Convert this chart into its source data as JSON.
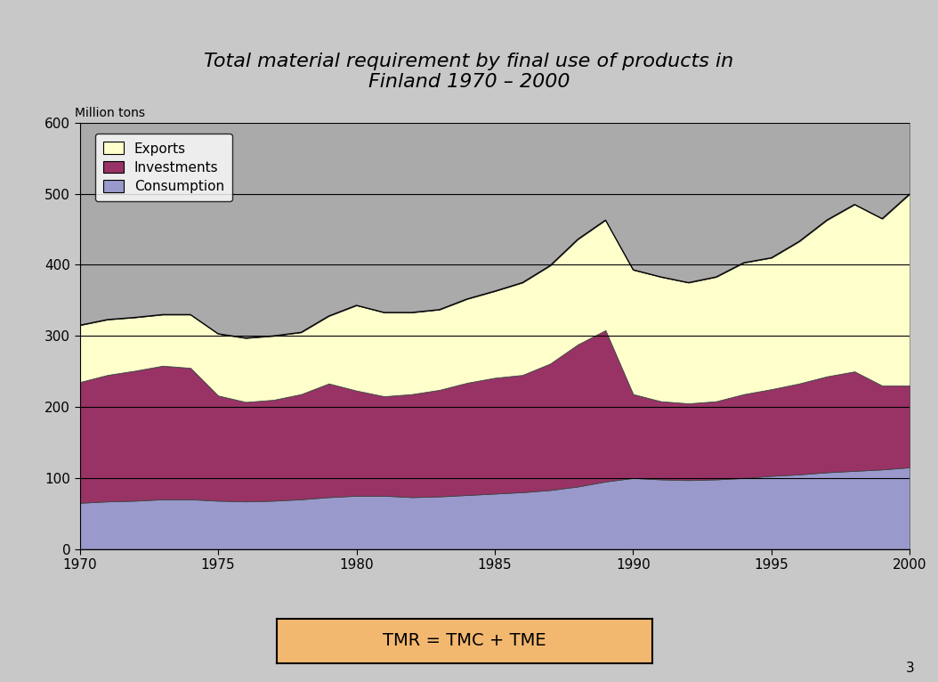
{
  "title": "Total material requirement by final use of products in\nFinland 1970 – 2000",
  "ylabel": "Million tons",
  "years": [
    1970,
    1971,
    1972,
    1973,
    1974,
    1975,
    1976,
    1977,
    1978,
    1979,
    1980,
    1981,
    1982,
    1983,
    1984,
    1985,
    1986,
    1987,
    1988,
    1989,
    1990,
    1991,
    1992,
    1993,
    1994,
    1995,
    1996,
    1997,
    1998,
    1999,
    2000
  ],
  "consumption": [
    65,
    67,
    68,
    70,
    70,
    68,
    67,
    68,
    70,
    73,
    75,
    75,
    73,
    74,
    76,
    78,
    80,
    83,
    88,
    95,
    100,
    98,
    97,
    98,
    100,
    103,
    105,
    108,
    110,
    112,
    115
  ],
  "investments": [
    170,
    178,
    183,
    188,
    185,
    148,
    140,
    142,
    148,
    160,
    148,
    140,
    145,
    150,
    158,
    163,
    165,
    178,
    200,
    213,
    118,
    110,
    108,
    110,
    118,
    122,
    128,
    135,
    140,
    118,
    115
  ],
  "exports": [
    80,
    78,
    75,
    72,
    75,
    87,
    90,
    90,
    87,
    95,
    120,
    118,
    115,
    113,
    118,
    122,
    130,
    138,
    148,
    155,
    175,
    175,
    170,
    175,
    185,
    185,
    200,
    220,
    235,
    235,
    270
  ],
  "consumption_color": "#9999CC",
  "investments_color": "#993366",
  "exports_color": "#FFFFCC",
  "gray_color": "#AAAAAA",
  "bg_outer": "#F2B870",
  "bg_gray": "#B8B8B8",
  "ylim_max": 600,
  "yticks": [
    0,
    100,
    200,
    300,
    400,
    500,
    600
  ],
  "xticks": [
    1970,
    1975,
    1980,
    1985,
    1990,
    1995,
    2000
  ],
  "legend_labels": [
    "Exports",
    "Investments",
    "Consumption"
  ],
  "legend_colors": [
    "#FFFFCC",
    "#993366",
    "#9999CC"
  ],
  "formula_text": "TMR = TMC + TME",
  "formula_box_color": "#F2B870",
  "page_bg": "#C8C8C8",
  "page_number": "3"
}
